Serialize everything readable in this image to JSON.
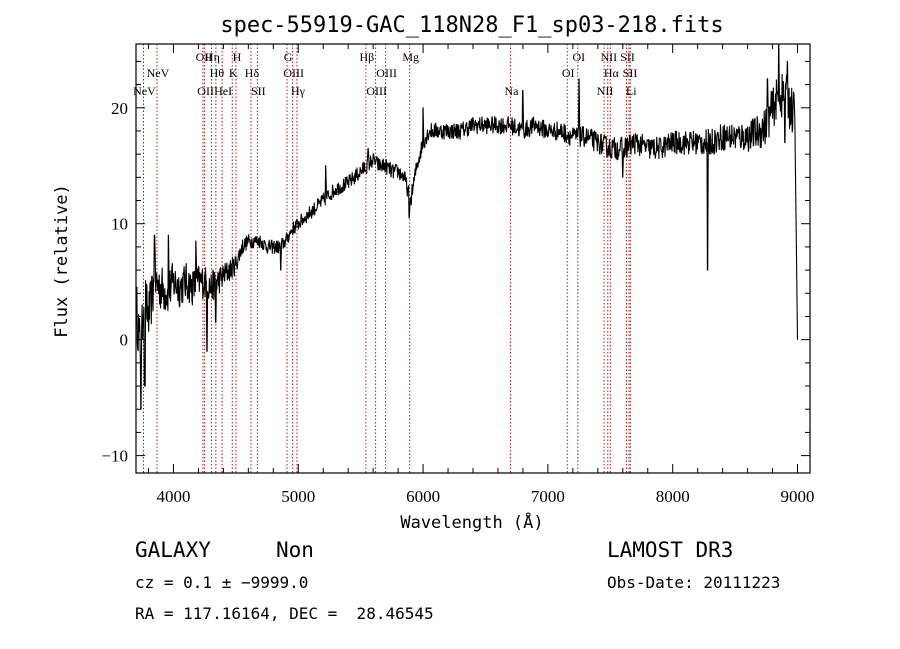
{
  "chart_data": {
    "type": "line",
    "title": "spec-55919-GAC_118N28_F1_sp03-218.fits",
    "xlabel": "Wavelength (Å)",
    "ylabel": "Flux (relative)",
    "xlim": [
      3700,
      9100
    ],
    "ylim": [
      -11.5,
      25.5
    ],
    "x_ticks": [
      4000,
      5000,
      6000,
      7000,
      8000,
      9000
    ],
    "y_ticks": [
      -10,
      0,
      10,
      20
    ],
    "x_tick_labels": [
      "4000",
      "5000",
      "6000",
      "7000",
      "8000",
      "9000"
    ],
    "y_tick_labels": [
      "−10",
      "0",
      "10",
      "20"
    ],
    "line_color": "#000000",
    "marker_color": "#aa0000",
    "series": [
      {
        "name": "flux",
        "anchors": [
          [
            3700,
            3
          ],
          [
            3720,
            1
          ],
          [
            3740,
            -2
          ],
          [
            3760,
            4
          ],
          [
            3780,
            3
          ],
          [
            3800,
            2
          ],
          [
            3850,
            5
          ],
          [
            3900,
            4.5
          ],
          [
            3950,
            4
          ],
          [
            4000,
            5
          ],
          [
            4050,
            4.5
          ],
          [
            4100,
            5
          ],
          [
            4150,
            4.5
          ],
          [
            4200,
            5
          ],
          [
            4250,
            5
          ],
          [
            4300,
            4.5
          ],
          [
            4350,
            5
          ],
          [
            4400,
            5.5
          ],
          [
            4450,
            6
          ],
          [
            4500,
            6.5
          ],
          [
            4550,
            8
          ],
          [
            4600,
            8.5
          ],
          [
            4650,
            8.5
          ],
          [
            4700,
            8.5
          ],
          [
            4750,
            8
          ],
          [
            4800,
            8
          ],
          [
            4850,
            8
          ],
          [
            4900,
            8.5
          ],
          [
            4950,
            9.5
          ],
          [
            5000,
            10
          ],
          [
            5100,
            11
          ],
          [
            5200,
            12
          ],
          [
            5300,
            13
          ],
          [
            5400,
            13.5
          ],
          [
            5500,
            14.5
          ],
          [
            5550,
            15
          ],
          [
            5600,
            15.5
          ],
          [
            5650,
            15
          ],
          [
            5700,
            15
          ],
          [
            5750,
            14.5
          ],
          [
            5800,
            14.5
          ],
          [
            5850,
            14
          ],
          [
            5900,
            12
          ],
          [
            5950,
            15
          ],
          [
            6000,
            17
          ],
          [
            6050,
            18
          ],
          [
            6100,
            18
          ],
          [
            6200,
            18
          ],
          [
            6300,
            18
          ],
          [
            6400,
            18.5
          ],
          [
            6500,
            18.5
          ],
          [
            6600,
            18.5
          ],
          [
            6700,
            18.5
          ],
          [
            6800,
            18
          ],
          [
            6900,
            18.5
          ],
          [
            7000,
            18
          ],
          [
            7100,
            18
          ],
          [
            7200,
            17.5
          ],
          [
            7300,
            17.5
          ],
          [
            7400,
            17
          ],
          [
            7500,
            16.5
          ],
          [
            7600,
            16.5
          ],
          [
            7700,
            17
          ],
          [
            7800,
            16.5
          ],
          [
            7900,
            16.5
          ],
          [
            8000,
            17
          ],
          [
            8100,
            17
          ],
          [
            8200,
            17
          ],
          [
            8300,
            17
          ],
          [
            8400,
            17.5
          ],
          [
            8500,
            17.5
          ],
          [
            8600,
            17.5
          ],
          [
            8700,
            18
          ],
          [
            8750,
            18.5
          ],
          [
            8800,
            20
          ],
          [
            8850,
            21
          ],
          [
            8900,
            21
          ],
          [
            8950,
            20
          ],
          [
            8980,
            19
          ]
        ],
        "noise_scale": [
          [
            3700,
            2.5
          ],
          [
            4000,
            1.8
          ],
          [
            4300,
            1.4
          ],
          [
            4600,
            0.6
          ],
          [
            5000,
            0.6
          ],
          [
            6000,
            0.7
          ],
          [
            7000,
            0.8
          ],
          [
            7600,
            1.0
          ],
          [
            8000,
            1.0
          ],
          [
            8600,
            1.3
          ],
          [
            8980,
            2.2
          ]
        ],
        "dips": [
          [
            3740,
            -6
          ],
          [
            3770,
            -4
          ],
          [
            4270,
            -1
          ],
          [
            4340,
            1.5
          ],
          [
            4860,
            6
          ],
          [
            5890,
            10.5
          ],
          [
            7600,
            14
          ],
          [
            8280,
            6
          ],
          [
            8900,
            17
          ],
          [
            8990,
            2
          ],
          [
            9000,
            0
          ]
        ],
        "spikes": [
          [
            3850,
            9
          ],
          [
            3960,
            9
          ],
          [
            4180,
            8.5
          ],
          [
            5220,
            15
          ],
          [
            5560,
            16.5
          ],
          [
            6000,
            20
          ],
          [
            6800,
            21.5
          ],
          [
            7250,
            22.5
          ],
          [
            8760,
            22.5
          ],
          [
            8850,
            25.5
          ],
          [
            8920,
            24
          ]
        ]
      }
    ],
    "line_markers": [
      {
        "wavelength": 3760,
        "label": "NeV",
        "row": 3
      },
      {
        "wavelength": 3868,
        "label": "NeV",
        "row": 2
      },
      {
        "wavelength": 4236,
        "label": "OII",
        "row": 1
      },
      {
        "wavelength": 4250,
        "label": "OII",
        "row": 3
      },
      {
        "wavelength": 4304,
        "label": "Hη",
        "row": 1
      },
      {
        "wavelength": 4340,
        "label": "Hθ",
        "row": 2
      },
      {
        "wavelength": 4390,
        "label": "HeI",
        "row": 3
      },
      {
        "wavelength": 4471,
        "label": "K",
        "row": 2
      },
      {
        "wavelength": 4501,
        "label": "H",
        "row": 1
      },
      {
        "wavelength": 4621,
        "label": "Hδ",
        "row": 2
      },
      {
        "wavelength": 4672,
        "label": "SII",
        "row": 3
      },
      {
        "wavelength": 4910,
        "label": "G",
        "row": 1
      },
      {
        "wavelength": 4955,
        "label": "OIII",
        "row": 2
      },
      {
        "wavelength": 4990,
        "label": "Hγ",
        "row": 3
      },
      {
        "wavelength": 5542,
        "label": "Hβ",
        "row": 1
      },
      {
        "wavelength": 5620,
        "label": "OIII",
        "row": 3
      },
      {
        "wavelength": 5700,
        "label": "OIII",
        "row": 2
      },
      {
        "wavelength": 5893,
        "label": "Mg",
        "row": 1
      },
      {
        "wavelength": 6700,
        "label": "Na",
        "row": 3
      },
      {
        "wavelength": 7155,
        "label": "OI",
        "row": 2
      },
      {
        "wavelength": 7240,
        "label": "OI",
        "row": 1
      },
      {
        "wavelength": 7450,
        "label": "NII",
        "row": 3
      },
      {
        "wavelength": 7480,
        "label": "NII",
        "row": 1
      },
      {
        "wavelength": 7500,
        "label": "Hα",
        "row": 2
      },
      {
        "wavelength": 7630,
        "label": "SII",
        "row": 1
      },
      {
        "wavelength": 7650,
        "label": "SII",
        "row": 2
      },
      {
        "wavelength": 7660,
        "label": "Li",
        "row": 3
      }
    ]
  },
  "footer": {
    "class_label": "GALAXY",
    "subclass": "Non",
    "survey": "LAMOST DR3",
    "redshift": "cz = 0.1 ± −9999.0",
    "obs_date": "Obs-Date: 20111223",
    "coords": "RA = 117.16164, DEC =  28.46545"
  }
}
